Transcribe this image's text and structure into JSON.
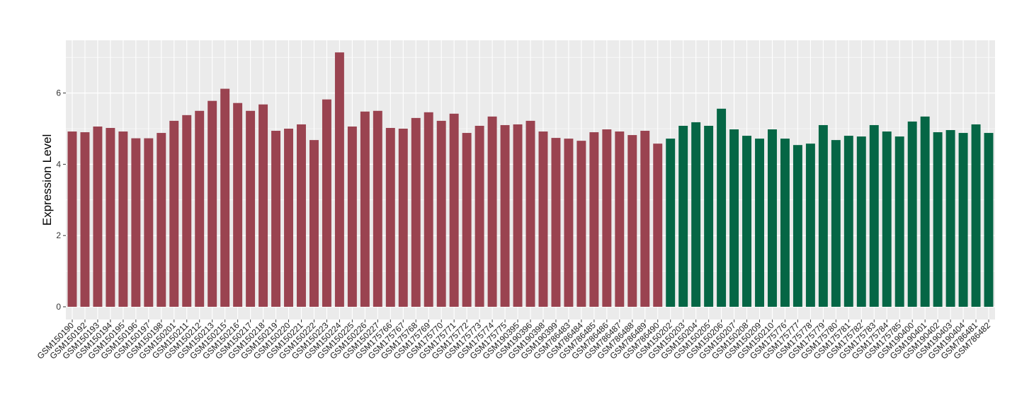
{
  "chart_data": {
    "type": "bar",
    "title": "",
    "xlabel": "",
    "ylabel": "Expression Level",
    "ylim": [
      0,
      7.2
    ],
    "yticks": [
      0,
      2,
      4,
      6
    ],
    "grid": true,
    "legend": "none",
    "colors": {
      "group1": "#9a4350",
      "group2": "#056645",
      "panel": "#ebebeb",
      "grid": "#ffffff"
    },
    "categories": [
      "GSM150190",
      "GSM150192",
      "GSM150193",
      "GSM150194",
      "GSM150195",
      "GSM150196",
      "GSM150197",
      "GSM150198",
      "GSM150201",
      "GSM150211",
      "GSM150212",
      "GSM150213",
      "GSM150215",
      "GSM150216",
      "GSM150217",
      "GSM150218",
      "GSM150219",
      "GSM150220",
      "GSM150221",
      "GSM150222",
      "GSM150223",
      "GSM150224",
      "GSM150225",
      "GSM150226",
      "GSM150227",
      "GSM175766",
      "GSM175767",
      "GSM175768",
      "GSM175769",
      "GSM175770",
      "GSM175771",
      "GSM175772",
      "GSM175773",
      "GSM175774",
      "GSM175775",
      "GSM190395",
      "GSM190396",
      "GSM190398",
      "GSM190399",
      "GSM786483",
      "GSM786484",
      "GSM786485",
      "GSM786486",
      "GSM786487",
      "GSM786488",
      "GSM786489",
      "GSM786490",
      "GSM150202",
      "GSM150203",
      "GSM150204",
      "GSM150205",
      "GSM150206",
      "GSM150207",
      "GSM150208",
      "GSM150209",
      "GSM150210",
      "GSM175776",
      "GSM175777",
      "GSM175778",
      "GSM175779",
      "GSM175780",
      "GSM175781",
      "GSM175782",
      "GSM175783",
      "GSM175784",
      "GSM175785",
      "GSM190400",
      "GSM190401",
      "GSM190402",
      "GSM190403",
      "GSM190404",
      "GSM786481",
      "GSM786482"
    ],
    "values": [
      4.92,
      4.9,
      5.06,
      5.02,
      4.92,
      4.73,
      4.73,
      4.88,
      5.22,
      5.38,
      5.5,
      5.78,
      6.12,
      5.72,
      5.5,
      5.68,
      4.94,
      5.0,
      5.12,
      4.68,
      5.82,
      7.14,
      5.06,
      5.48,
      5.5,
      5.02,
      5.0,
      5.3,
      5.46,
      5.22,
      5.42,
      4.88,
      5.08,
      5.34,
      5.1,
      5.12,
      5.22,
      4.92,
      4.74,
      4.72,
      4.66,
      4.9,
      4.98,
      4.92,
      4.82,
      4.94,
      4.58,
      4.72,
      5.08,
      5.18,
      5.08,
      5.56,
      4.98,
      4.8,
      4.72,
      4.98,
      4.72,
      4.54,
      4.58,
      5.1,
      4.68,
      4.8,
      4.78,
      5.1,
      4.92,
      4.78,
      5.2,
      5.34,
      4.9,
      4.96,
      4.88,
      5.12,
      4.88
    ],
    "groups": [
      1,
      1,
      1,
      1,
      1,
      1,
      1,
      1,
      1,
      1,
      1,
      1,
      1,
      1,
      1,
      1,
      1,
      1,
      1,
      1,
      1,
      1,
      1,
      1,
      1,
      1,
      1,
      1,
      1,
      1,
      1,
      1,
      1,
      1,
      1,
      1,
      1,
      1,
      1,
      1,
      1,
      1,
      1,
      1,
      1,
      1,
      1,
      2,
      2,
      2,
      2,
      2,
      2,
      2,
      2,
      2,
      2,
      2,
      2,
      2,
      2,
      2,
      2,
      2,
      2,
      2,
      2,
      2,
      2,
      2,
      2,
      2,
      2
    ]
  }
}
